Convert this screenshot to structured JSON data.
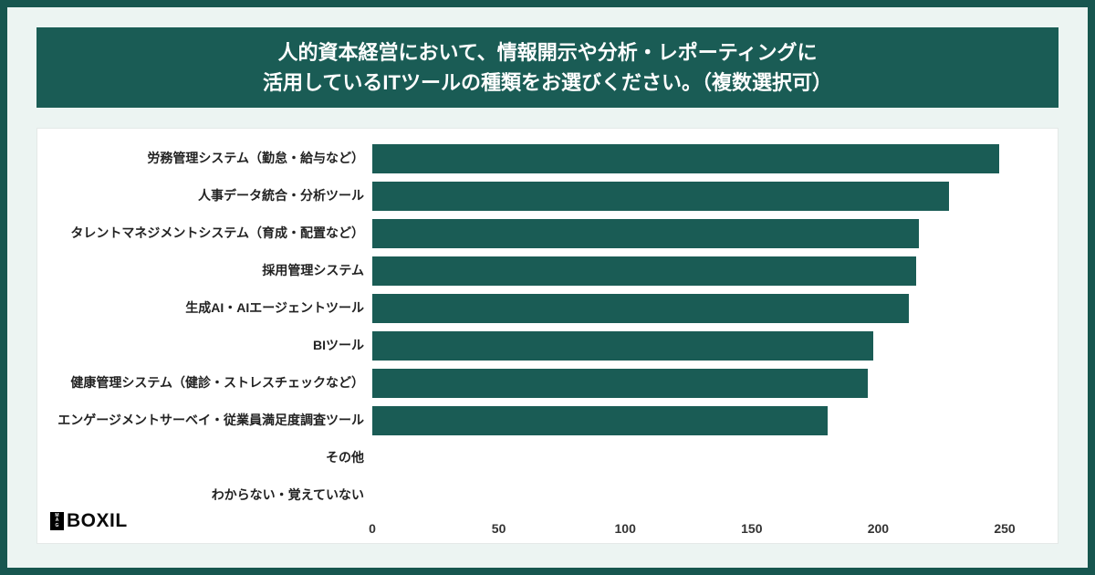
{
  "banner": {
    "line1": "人的資本経営において、情報開示や分析・レポーティングに",
    "line2": "活用しているITツールの種類をお選びください。（複数選択可）"
  },
  "logo": {
    "mark_letters": [
      "M",
      "A",
      "G"
    ],
    "text": "BOXIL"
  },
  "colors": {
    "frame": "#17564F",
    "banner_bg": "#1A5C55",
    "bar": "#1A5C55",
    "page_bg": "#ECF4F2"
  },
  "chart_data": {
    "type": "bar",
    "orientation": "horizontal",
    "title": "人的資本経営において、情報開示や分析・レポーティングに活用しているITツールの種類をお選びください。（複数選択可）",
    "categories": [
      "労務管理システム（勤怠・給与など）",
      "人事データ統合・分析ツール",
      "タレントマネジメントシステム（育成・配置など）",
      "採用管理システム",
      "生成AI・AIエージェントツール",
      "BIツール",
      "健康管理システム（健診・ストレスチェックなど）",
      "エンゲージメントサーベイ・従業員満足度調査ツール",
      "その他",
      "わからない・覚えていない"
    ],
    "values": [
      248,
      228,
      216,
      215,
      212,
      198,
      196,
      180,
      0,
      0
    ],
    "xlim": [
      0,
      250
    ],
    "xticks": [
      0,
      50,
      100,
      150,
      200,
      250
    ],
    "bar_color": "#1A5C55",
    "grid": false,
    "legend": false
  }
}
